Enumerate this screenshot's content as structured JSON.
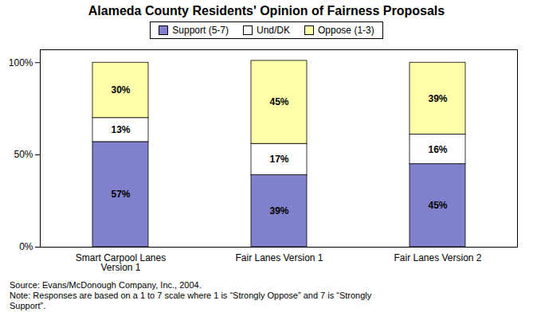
{
  "chart_data": {
    "type": "bar",
    "title": "Alameda County Residents' Opinion of Fairness Proposals",
    "categories": [
      "Smart Carpool Lanes\nVersion 1",
      "Fair Lanes Version 1",
      "Fair Lanes Version 2"
    ],
    "series": [
      {
        "name": "Support (5-7)",
        "color": "#8080cc",
        "values": [
          57,
          39,
          45
        ],
        "value_labels": [
          "57%",
          "39%",
          "45%"
        ]
      },
      {
        "name": "Und/DK",
        "color": "#ffffff",
        "values": [
          13,
          17,
          16
        ],
        "value_labels": [
          "13%",
          "17%",
          "16%"
        ]
      },
      {
        "name": "Oppose (1-3)",
        "color": "#ffffaa",
        "values": [
          30,
          45,
          39
        ],
        "value_labels": [
          "30%",
          "45%",
          "39%"
        ]
      }
    ],
    "stacked": true,
    "data_labels": true,
    "ylim": [
      0,
      107
    ],
    "yticks": [
      {
        "value": 0,
        "label": "0%"
      },
      {
        "value": 50,
        "label": "50%"
      },
      {
        "value": 100,
        "label": "100%"
      }
    ],
    "legend": "top",
    "annotations": [
      "Source: Evans/McDonough Company, Inc., 2004.",
      "Note: Responses are based on a 1 to 7 scale where 1 is “Strongly Oppose” and 7 is “Strongly",
      "Support”."
    ]
  }
}
